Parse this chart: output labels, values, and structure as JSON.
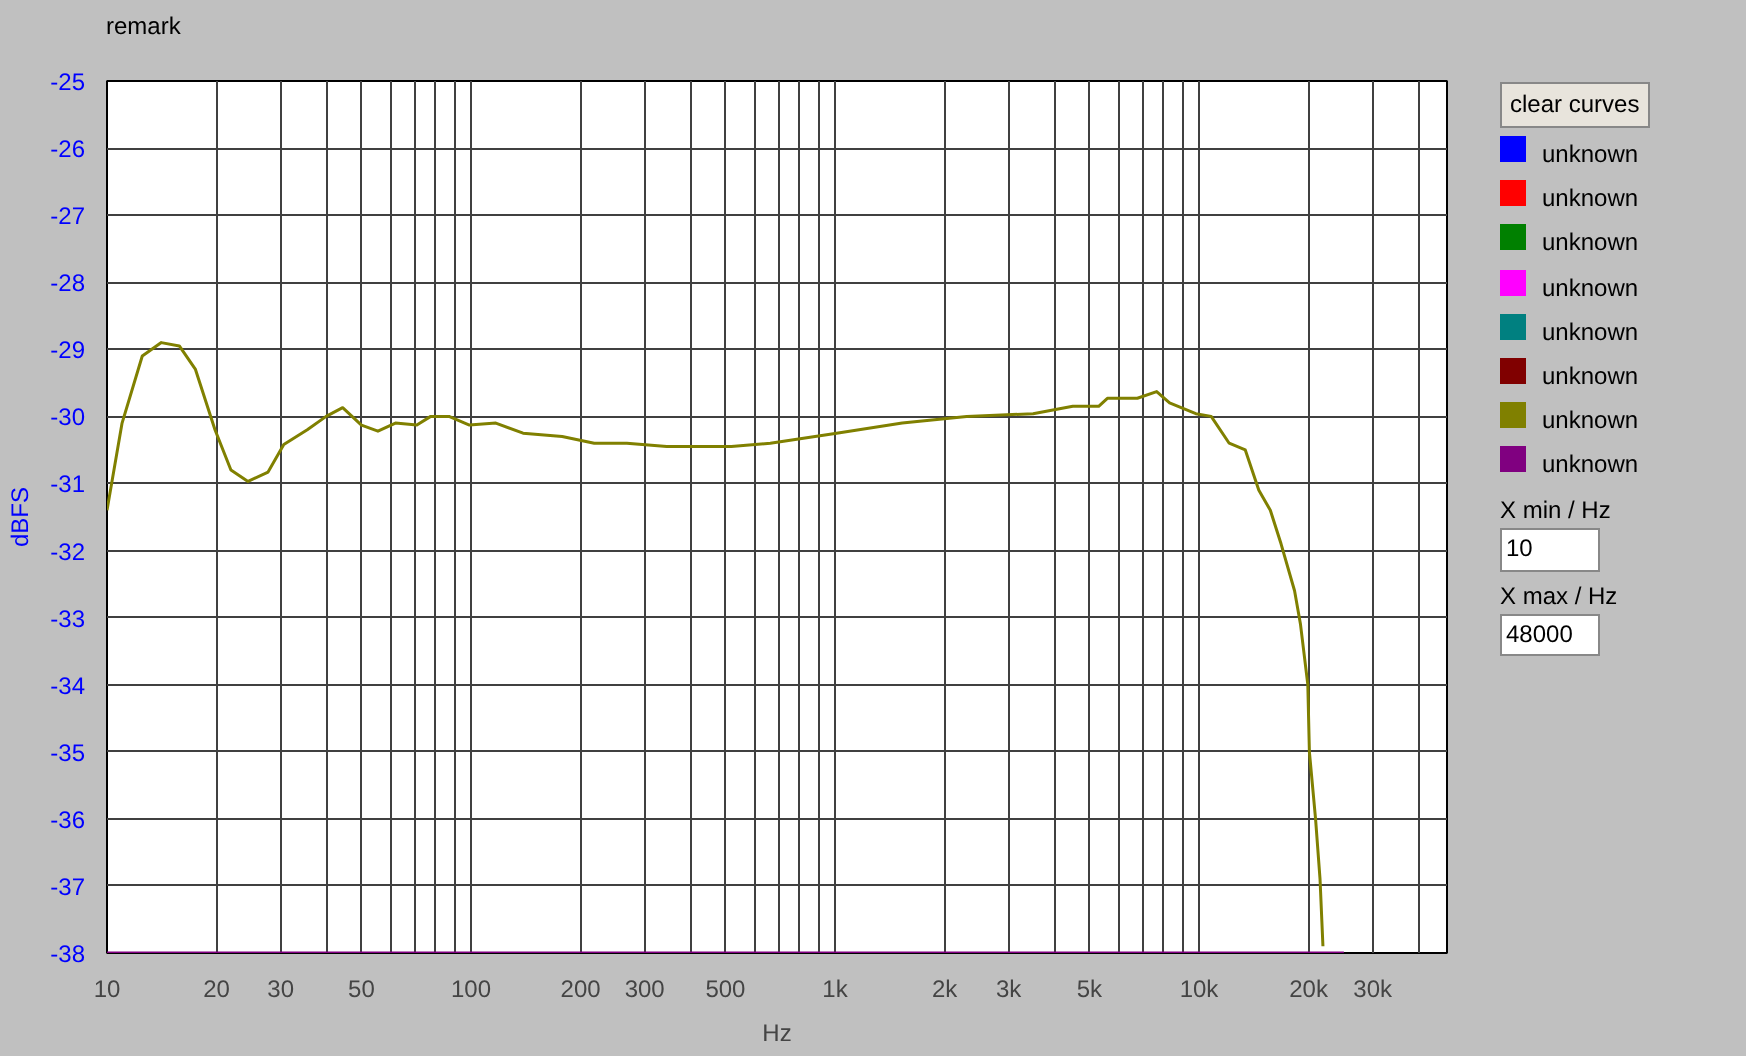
{
  "chart_data": {
    "type": "line",
    "xlabel": "Hz",
    "ylabel": "dBFS",
    "log": "x",
    "grid": true,
    "legend": "right",
    "marker": "none",
    "line_style": "solid",
    "xlim": [
      10,
      48000
    ],
    "ylim": [
      -38,
      -25
    ],
    "xticks": [
      10,
      20,
      30,
      {
        "value": 40,
        "label": null
      },
      50,
      {
        "value": 60,
        "label": null
      },
      {
        "value": 70,
        "label": null
      },
      {
        "value": 80,
        "label": null
      },
      {
        "value": 90,
        "label": null
      },
      100,
      200,
      300,
      {
        "value": 400,
        "label": null
      },
      500,
      {
        "value": 600,
        "label": null
      },
      {
        "value": 700,
        "label": null
      },
      {
        "value": 800,
        "label": null
      },
      {
        "value": 900,
        "label": null
      },
      {
        "value": 1000,
        "label": "1k"
      },
      {
        "value": 2000,
        "label": "2k"
      },
      {
        "value": 3000,
        "label": "3k"
      },
      {
        "value": 4000,
        "label": null
      },
      {
        "value": 5000,
        "label": "5k"
      },
      {
        "value": 6000,
        "label": null
      },
      {
        "value": 7000,
        "label": null
      },
      {
        "value": 8000,
        "label": null
      },
      {
        "value": 9000,
        "label": null
      },
      {
        "value": 10000,
        "label": "10k"
      },
      {
        "value": 20000,
        "label": "20k"
      },
      {
        "value": 30000,
        "label": "30k"
      },
      {
        "value": 40000,
        "label": null
      }
    ],
    "yticks": [
      -25,
      -26,
      -27,
      -28,
      -29,
      -30,
      -31,
      -32,
      -33,
      -34,
      -35,
      -36,
      -37,
      -38
    ],
    "annotations": [
      "remark",
      "clear curves",
      "X min / Hz",
      "10",
      "X max / Hz",
      "48000"
    ],
    "series": [
      {
        "name": "unknown",
        "color": "#0000ff"
      },
      {
        "name": "unknown",
        "color": "#ff0000"
      },
      {
        "name": "unknown",
        "color": "#008000"
      },
      {
        "name": "unknown",
        "color": "#ff00ff"
      },
      {
        "name": "unknown",
        "color": "#008080"
      },
      {
        "name": "unknown",
        "color": "#800000"
      },
      {
        "name": "unknown",
        "color": "#808000",
        "x": [
          10,
          11,
          12.5,
          14.1,
          15.8,
          17.5,
          19.8,
          21.9,
          24.4,
          27.7,
          30.6,
          35.5,
          40,
          44.4,
          50,
          55.5,
          62,
          71,
          77.5,
          87,
          99,
          117,
          139,
          178,
          218,
          268,
          345,
          440,
          519,
          664,
          1010,
          1530,
          2300,
          3500,
          4500,
          5300,
          5600,
          6770,
          7650,
          8300,
          9800,
          10800,
          12100,
          13400,
          14600,
          15700,
          16800,
          18300,
          19000,
          19900,
          20100,
          20900,
          21500,
          21900
        ],
        "values": [
          -31.4,
          -30.1,
          -29.1,
          -28.9,
          -28.95,
          -29.3,
          -30.2,
          -30.8,
          -30.97,
          -30.83,
          -30.42,
          -30.2,
          -30.0,
          -29.87,
          -30.13,
          -30.22,
          -30.1,
          -30.13,
          -30.0,
          -30.0,
          -30.13,
          -30.1,
          -30.25,
          -30.3,
          -30.4,
          -30.4,
          -30.45,
          -30.45,
          -30.45,
          -30.4,
          -30.25,
          -30.1,
          -30.0,
          -29.96,
          -29.85,
          -29.85,
          -29.73,
          -29.73,
          -29.63,
          -29.8,
          -29.96,
          -30.0,
          -30.4,
          -30.5,
          -31.1,
          -31.4,
          -31.9,
          -32.6,
          -33.1,
          -34.0,
          -35.0,
          -36.0,
          -36.9,
          -37.9
        ]
      },
      {
        "name": "unknown",
        "color": "#800080",
        "x": [
          10,
          25000
        ],
        "values": [
          -38,
          -38
        ]
      }
    ]
  }
}
